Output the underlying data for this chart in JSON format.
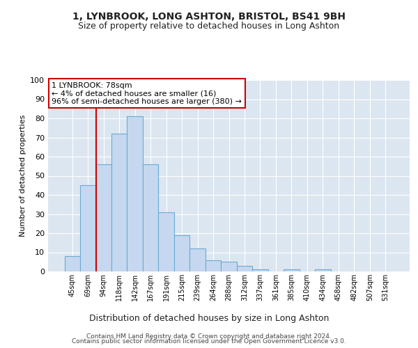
{
  "title": "1, LYNBROOK, LONG ASHTON, BRISTOL, BS41 9BH",
  "subtitle": "Size of property relative to detached houses in Long Ashton",
  "xlabel": "Distribution of detached houses by size in Long Ashton",
  "ylabel": "Number of detached properties",
  "bar_values": [
    8,
    45,
    56,
    72,
    81,
    56,
    31,
    19,
    12,
    6,
    5,
    3,
    1,
    0,
    1,
    0,
    1,
    0,
    0,
    0,
    0
  ],
  "categories": [
    "45sqm",
    "69sqm",
    "94sqm",
    "118sqm",
    "142sqm",
    "167sqm",
    "191sqm",
    "215sqm",
    "239sqm",
    "264sqm",
    "288sqm",
    "312sqm",
    "337sqm",
    "361sqm",
    "385sqm",
    "410sqm",
    "434sqm",
    "458sqm",
    "482sqm",
    "507sqm",
    "531sqm"
  ],
  "bar_color": "#c5d8ef",
  "bar_edge_color": "#6aaad4",
  "background_color": "#dce6f0",
  "grid_color": "#ffffff",
  "vline_x": 1.5,
  "vline_color": "#cc0000",
  "annotation_text": "1 LYNBROOK: 78sqm\n← 4% of detached houses are smaller (16)\n96% of semi-detached houses are larger (380) →",
  "annotation_box_facecolor": "#ffffff",
  "annotation_box_edgecolor": "#cc0000",
  "ylim": [
    0,
    100
  ],
  "yticks": [
    0,
    10,
    20,
    30,
    40,
    50,
    60,
    70,
    80,
    90,
    100
  ],
  "title_fontsize": 10,
  "subtitle_fontsize": 9,
  "xlabel_fontsize": 9,
  "ylabel_fontsize": 8,
  "footer1": "Contains HM Land Registry data © Crown copyright and database right 2024.",
  "footer2": "Contains public sector information licensed under the Open Government Licence v3.0."
}
